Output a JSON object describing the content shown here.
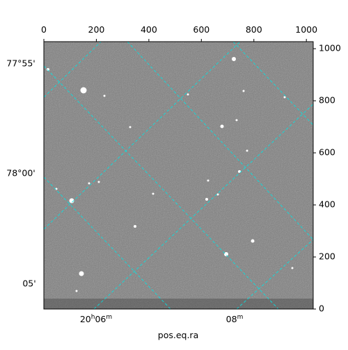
{
  "chart_data": {
    "type": "image",
    "xlabel": "pos.eq.ra",
    "xlim": [
      0,
      1026
    ],
    "ylim": [
      0,
      1027
    ],
    "xticks": [
      0,
      200,
      400,
      600,
      800,
      1000
    ],
    "yticks": [
      0,
      200,
      400,
      600,
      800,
      1000
    ],
    "left_labels": [
      "77°55'",
      "78°00'",
      "05'"
    ],
    "bottom_labels": [
      [
        "20",
        "h",
        "06",
        "m"
      ],
      [
        "08",
        "m"
      ]
    ]
  }
}
